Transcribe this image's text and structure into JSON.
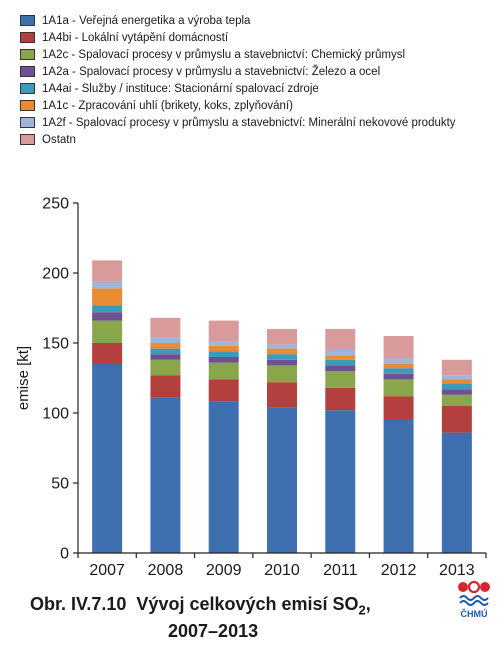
{
  "chart_data": {
    "type": "bar",
    "stacked": true,
    "categories": [
      "2007",
      "2008",
      "2009",
      "2010",
      "2011",
      "2012",
      "2013"
    ],
    "ylabel": "emise [kt]",
    "ylim": [
      0,
      250
    ],
    "yticks": [
      0,
      50,
      100,
      150,
      200,
      250
    ],
    "grid": false,
    "legend_position": "top",
    "series": [
      {
        "name": "1A1a - Veřejná energetika a výroba tepla",
        "color": "#3e6faf",
        "values": [
          135,
          111,
          108,
          104,
          102,
          95,
          86
        ]
      },
      {
        "name": "1A4bi - Lokální vytápění domácností",
        "color": "#b3403f",
        "values": [
          15,
          16,
          16,
          18,
          16,
          17,
          19
        ]
      },
      {
        "name": "1A2c - Spalovací procesy v průmyslu a stavebnictví: Chemický průmysl",
        "color": "#8aa64a",
        "values": [
          16,
          11,
          12,
          12,
          12,
          12,
          8
        ]
      },
      {
        "name": "1A2a - Spalovací procesy v průmyslu a stavebnictví: Železo a ocel",
        "color": "#6d5192",
        "values": [
          6,
          4,
          4,
          4,
          4,
          4,
          4
        ]
      },
      {
        "name": "1A4ai - Služby / instituce: Stacionární spalovací zdroje",
        "color": "#3c9bb8",
        "values": [
          5,
          4,
          4,
          4,
          4,
          4,
          4
        ]
      },
      {
        "name": "1A1c - Zpracování uhlí (brikety, koks, zplyňování)",
        "color": "#e98b33",
        "values": [
          12,
          4,
          4,
          4,
          3,
          3,
          3
        ]
      },
      {
        "name": "1A2f - Spalovací procesy v průmyslu a stavebnictví: Minerální nekovové produkty",
        "color": "#9fb4d9",
        "values": [
          5,
          4,
          3,
          3,
          4,
          4,
          3
        ]
      },
      {
        "name": "Ostatn",
        "color": "#d99a9a",
        "values": [
          15,
          14,
          15,
          11,
          15,
          16,
          11
        ]
      }
    ]
  },
  "caption": {
    "prefix": "Obr. IV.7.10",
    "title_main": "Vývoj celkových emisí SO",
    "title_sub": "2",
    "title_suffix": ",",
    "years": "2007–2013"
  },
  "logo": {
    "text": "ČHMÚ"
  }
}
